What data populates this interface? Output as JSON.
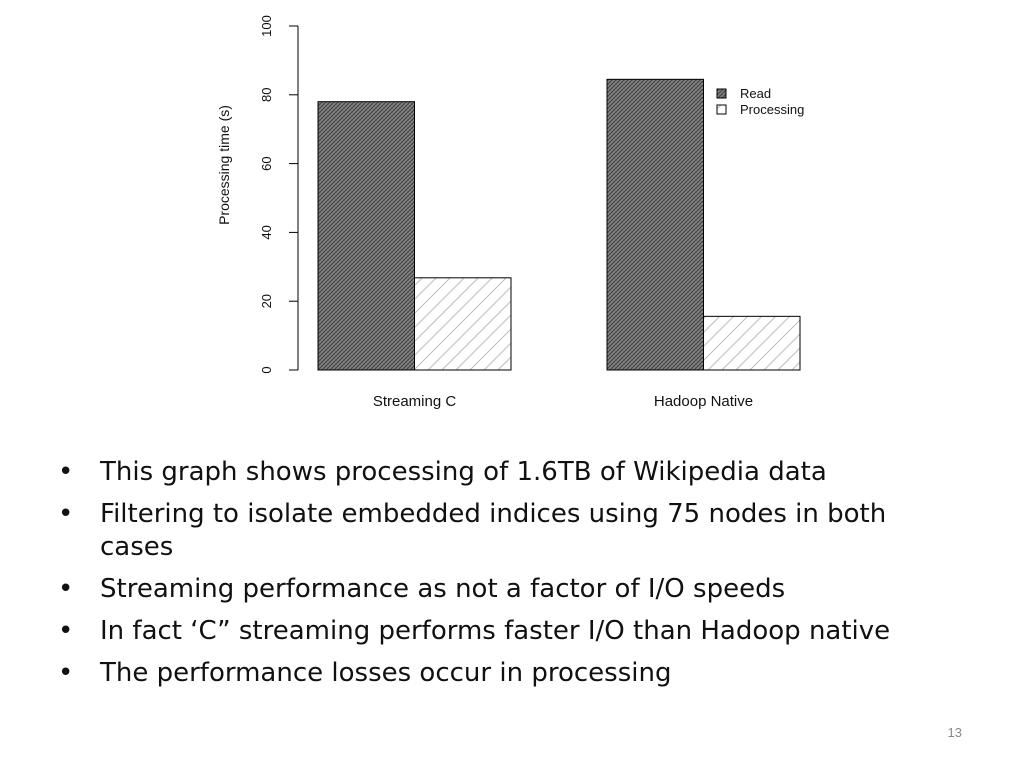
{
  "chart_data": {
    "type": "bar",
    "categories": [
      "Streaming C",
      "Hadoop Native"
    ],
    "series": [
      {
        "name": "Read",
        "values": [
          78,
          84.5
        ],
        "fill": "crosshatch-dark"
      },
      {
        "name": "Processing",
        "values": [
          26.8,
          15.6
        ],
        "fill": "hatch-light"
      }
    ],
    "ylabel": "Processing time (s)",
    "xlabel": "",
    "title": "",
    "ylim": [
      0,
      100
    ],
    "yticks": [
      0,
      20,
      40,
      60,
      80,
      100
    ],
    "legend_position": "top-right",
    "grid": false,
    "colors": {
      "read_fill": "#6e6e6e",
      "processing_fill": "#ffffff",
      "stroke": "#000000"
    }
  },
  "bullets": [
    "This graph shows processing of 1.6TB of Wikipedia data",
    "Filtering to isolate embedded indices using 75 nodes in both cases",
    "Streaming performance as not a factor of I/O speeds",
    "In fact ‘C” streaming performs faster I/O than Hadoop native",
    "The performance losses occur in processing"
  ],
  "bullet_glyph": "•",
  "slide_number": "13"
}
